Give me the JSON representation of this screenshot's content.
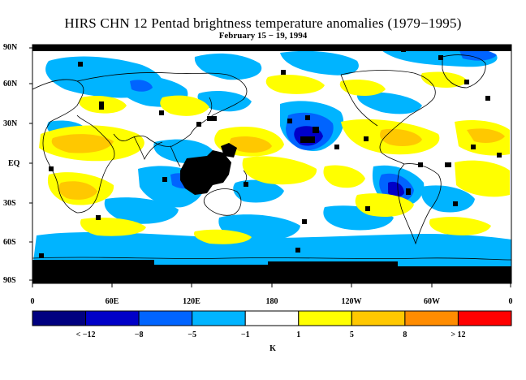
{
  "title": "HIRS CHN 12 Pentad brightness temperature anomalies (1979−1995)",
  "subtitle": "February 15 − 19, 1994",
  "lat_labels": [
    "90N",
    "60N",
    "30N",
    "EQ",
    "30S",
    "60S",
    "90S"
  ],
  "lon_labels": [
    "0",
    "60E",
    "120E",
    "180",
    "120W",
    "60W",
    "0"
  ],
  "colorbar": {
    "colors": [
      "#000080",
      "#0000c8",
      "#0064ff",
      "#00b4ff",
      "#ffffff",
      "#ffff00",
      "#ffc800",
      "#ff8c00",
      "#ff0000"
    ],
    "labels": [
      "< −12",
      "−8",
      "−5",
      "−1",
      "1",
      "5",
      "8",
      "> 12"
    ],
    "unit": "K"
  },
  "colors": {
    "missing": "#000000",
    "coast": "#000000",
    "frame": "#000000"
  }
}
